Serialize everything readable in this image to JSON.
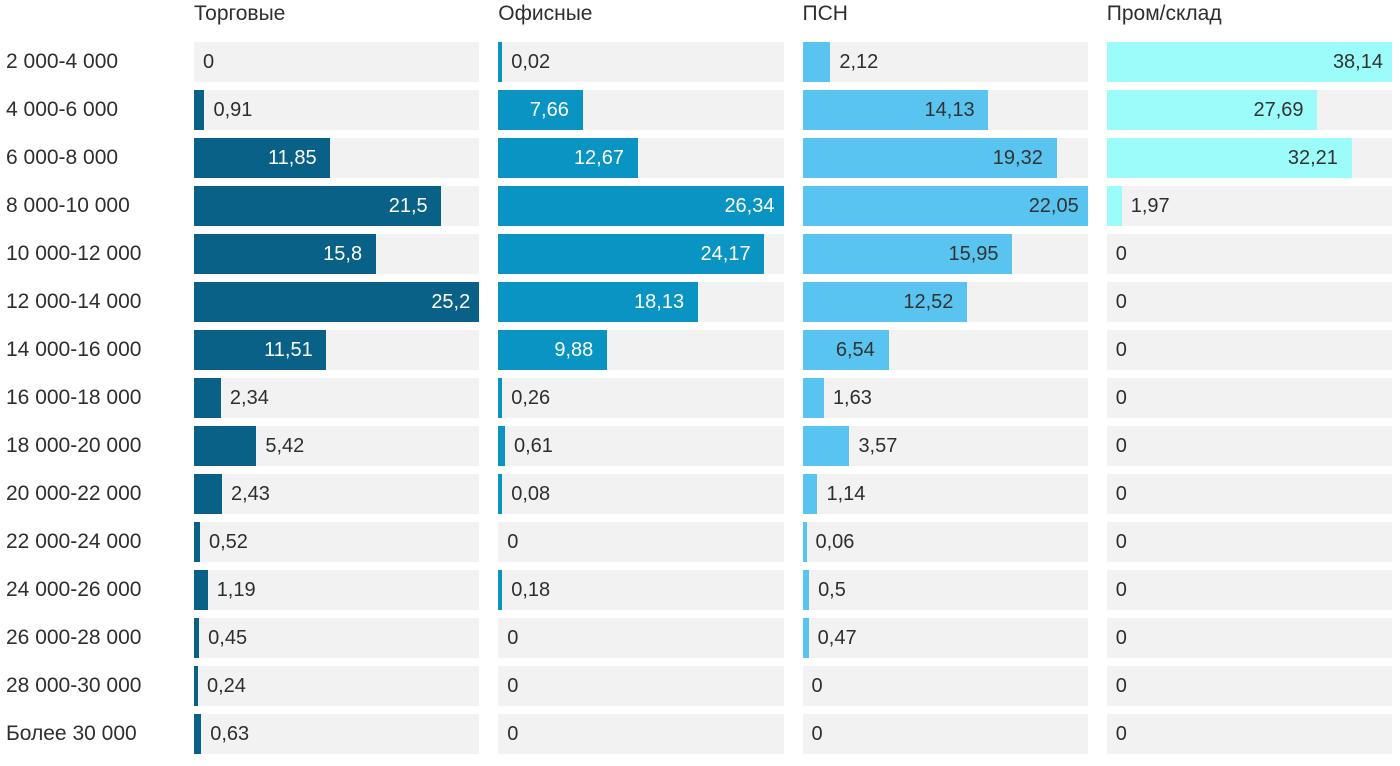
{
  "chart_data": {
    "type": "bar",
    "orientation": "horizontal",
    "grid": false,
    "legend_position": "none",
    "value_format": "comma-decimal",
    "track_color": "#f2f2f2",
    "text_color": "#2e2e2e",
    "categories": [
      "2 000-4 000",
      "4 000-6 000",
      "6 000-8 000",
      "8 000-10 000",
      "10 000-12 000",
      "12 000-14 000",
      "14 000-16 000",
      "16 000-18 000",
      "18 000-20 000",
      "20 000-22 000",
      "22 000-24 000",
      "24 000-26 000",
      "26 000-28 000",
      "28 000-30 000",
      "Более 30 000"
    ],
    "series": [
      {
        "name": "Торговые",
        "color": "#0a6187",
        "inside_label_color": "#ffffff",
        "axis_max": 25.2,
        "values": [
          0,
          0.91,
          11.85,
          21.5,
          15.8,
          25.2,
          11.51,
          2.34,
          5.42,
          2.43,
          0.52,
          1.19,
          0.45,
          0.24,
          0.63
        ]
      },
      {
        "name": "Офисные",
        "color": "#0994c3",
        "inside_label_color": "#ffffff",
        "axis_max": 26.34,
        "values": [
          0.02,
          7.66,
          12.67,
          26.34,
          24.17,
          18.13,
          9.88,
          0.26,
          0.61,
          0.08,
          0,
          0.18,
          0,
          0,
          0
        ]
      },
      {
        "name": "ПСН",
        "color": "#5ac4f1",
        "inside_label_color": "#333333",
        "axis_max": 22.05,
        "values": [
          2.12,
          14.13,
          19.32,
          22.05,
          15.95,
          12.52,
          6.54,
          1.63,
          3.57,
          1.14,
          0.06,
          0.5,
          0.47,
          0,
          0
        ]
      },
      {
        "name": "Пром/склад",
        "color": "#9bfcfa",
        "inside_label_color": "#333333",
        "axis_max": 38.14,
        "values": [
          38.14,
          27.69,
          32.21,
          1.97,
          0,
          0,
          0,
          0,
          0,
          0,
          0,
          0,
          0,
          0,
          0
        ]
      }
    ]
  }
}
